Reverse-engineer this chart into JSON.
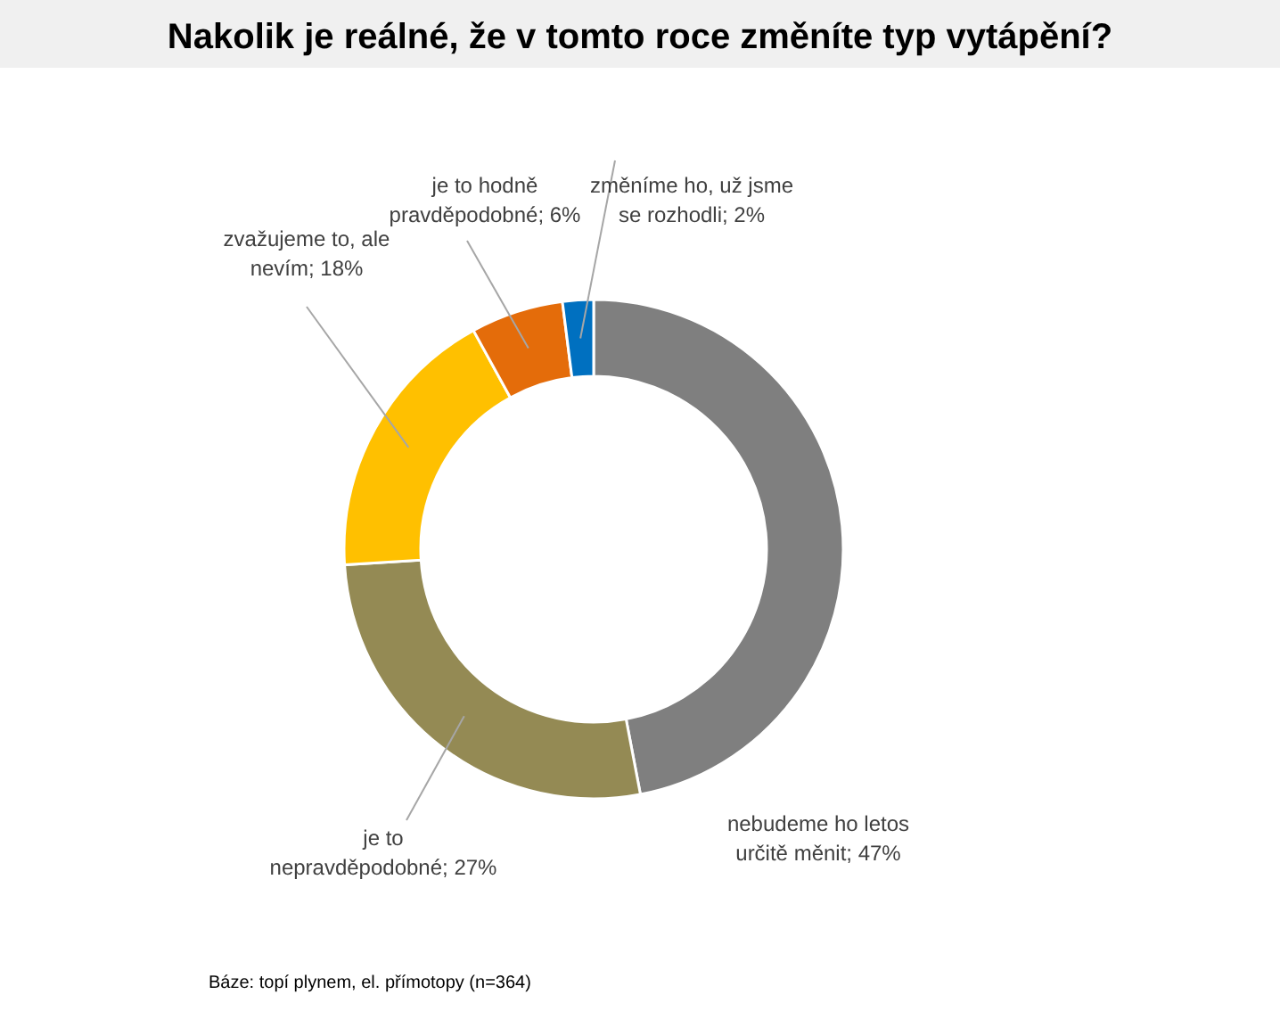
{
  "chart_data": {
    "type": "donut",
    "title": "Nakolik je reálné, že v tomto roce změníte typ vytápění?",
    "categories": [
      "nebudeme ho letos určitě měnit",
      "je to nepravděpodobné",
      "zvažujeme to, ale nevím",
      "je to hodně pravděpodobné",
      "změníme ho, už jsme se rozhodli"
    ],
    "values": [
      47,
      27,
      18,
      6,
      2
    ],
    "value_labels": [
      "47%",
      "27%",
      "18%",
      "6%",
      "2%"
    ],
    "colors": [
      "#7f7f7f",
      "#948a54",
      "#ffc000",
      "#e46c0a",
      "#0070c0"
    ],
    "annotations": [
      "Báze: topí plynem, el. přímotopy (n=364)"
    ]
  }
}
